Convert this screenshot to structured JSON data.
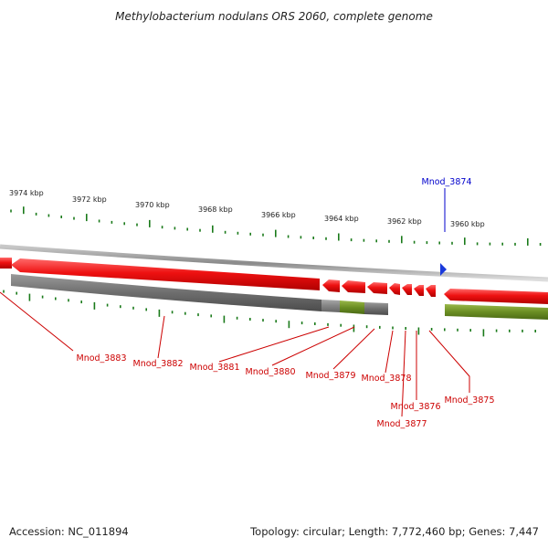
{
  "title": "Methylobacterium nodulans ORS 2060, complete genome",
  "footer": {
    "accession": "Accession: NC_011894",
    "summary": "Topology: circular; Length: 7,772,460 bp; Genes: 7,447"
  },
  "scale_labels": [
    "3974 kbp",
    "3972 kbp",
    "3970 kbp",
    "3968 kbp",
    "3966 kbp",
    "3964 kbp",
    "3962 kbp",
    "3960 kbp"
  ],
  "selected_gene": "Mnod_3874",
  "genes": [
    "Mnod_3883",
    "Mnod_3882",
    "Mnod_3881",
    "Mnod_3880",
    "Mnod_3879",
    "Mnod_3878",
    "Mnod_3876",
    "Mnod_3877",
    "Mnod_3875"
  ],
  "colors": {
    "gene": "#e01010",
    "label_gene": "#cc0000",
    "label_selected": "#0000cc",
    "tick": "#1a7a1a",
    "backbone": "#9a9a9a",
    "cds_gray": "#6e6e6e",
    "cds_olive": "#6b8e23"
  }
}
